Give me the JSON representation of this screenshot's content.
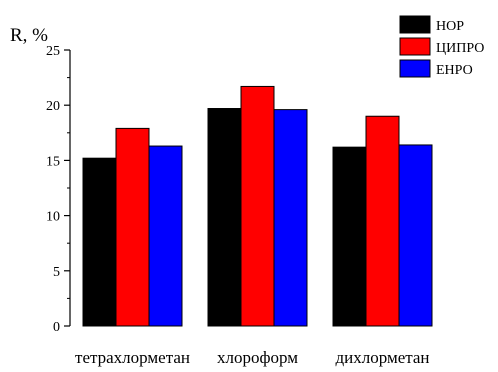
{
  "chart_data": {
    "type": "bar",
    "ylabel": "R, %",
    "xlabel": "",
    "ylim": [
      0,
      25
    ],
    "yticks": [
      0,
      5,
      10,
      15,
      20,
      25
    ],
    "grid": false,
    "legend_position": "top-right",
    "categories": [
      "тетрахлорметан",
      "хлороформ",
      "дихлорметан"
    ],
    "series": [
      {
        "name": "НОР",
        "color": "#000000",
        "values": [
          15.2,
          19.7,
          16.2
        ]
      },
      {
        "name": "ЦИПРО",
        "color": "#ff0000",
        "values": [
          17.9,
          21.7,
          19.0
        ]
      },
      {
        "name": "ЕНРО",
        "color": "#0000ff",
        "values": [
          16.3,
          19.6,
          16.4
        ]
      }
    ]
  }
}
